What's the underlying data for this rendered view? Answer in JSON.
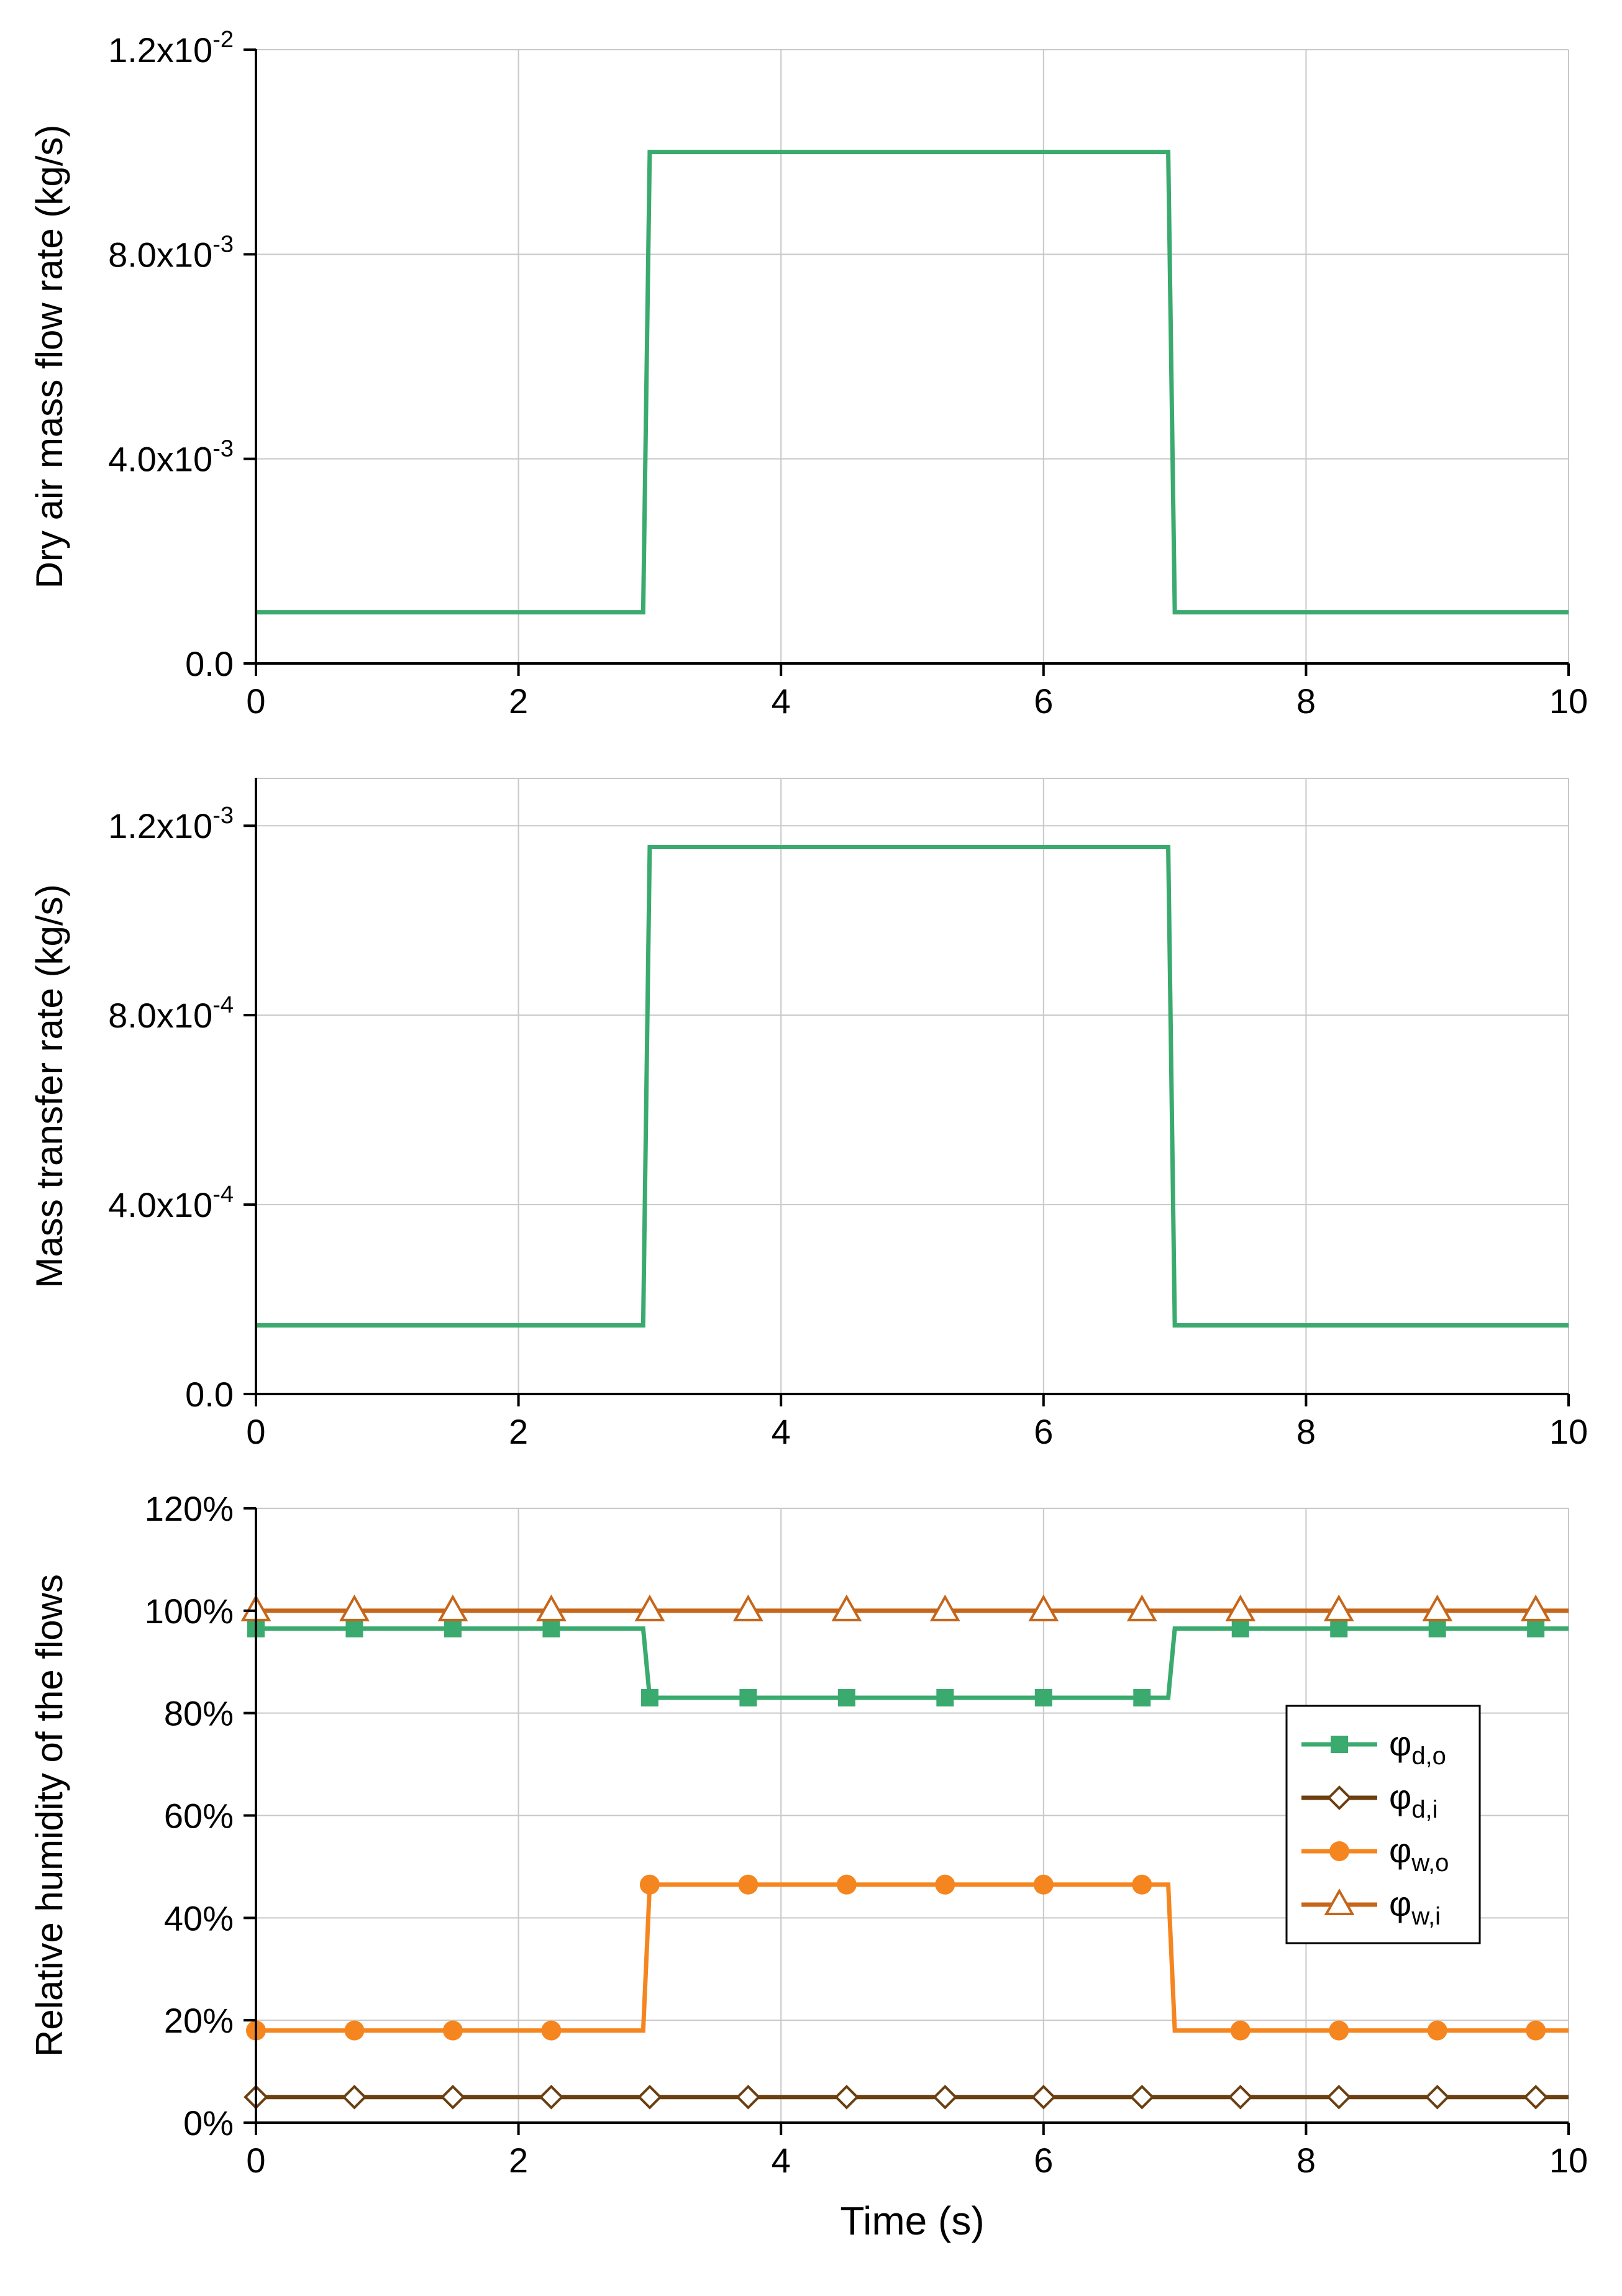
{
  "colors": {
    "phi_d_o": "#3aaa6e",
    "phi_d_i": "#6b3f10",
    "phi_w_o": "#f5851f",
    "phi_w_i": "#c5661a",
    "grid": "#c8c8c8",
    "axis": "#000000"
  },
  "chart_data": [
    {
      "type": "line",
      "id": "p1",
      "title": "",
      "xlabel": "",
      "ylabel": "Dry air mass flow rate (kg/s)",
      "xlim": [
        0,
        10
      ],
      "ylim": [
        0,
        0.012
      ],
      "xticks": [
        0,
        2,
        4,
        6,
        8,
        10
      ],
      "xtick_labels": [
        "0",
        "2",
        "4",
        "6",
        "8",
        "10"
      ],
      "yticks": [
        0,
        0.004,
        0.008,
        0.012
      ],
      "ytick_labels": [
        {
          "base": "0.0",
          "exp": ""
        },
        {
          "base": "4.0x10",
          "exp": "-3"
        },
        {
          "base": "8.0x10",
          "exp": "-3"
        },
        {
          "base": "1.2x10",
          "exp": "-2"
        }
      ],
      "grid": true,
      "series": [
        {
          "name": "dry air mass flow rate",
          "color": "#3aaa6e",
          "marker": "none",
          "x": [
            0,
            2.95,
            3.0,
            6.95,
            7.0,
            10
          ],
          "y": [
            0.001,
            0.001,
            0.01,
            0.01,
            0.001,
            0.001
          ]
        }
      ]
    },
    {
      "type": "line",
      "id": "p2",
      "title": "",
      "xlabel": "",
      "ylabel": "Mass transfer rate (kg/s)",
      "xlim": [
        0,
        10
      ],
      "ylim": [
        0,
        0.0013
      ],
      "xticks": [
        0,
        2,
        4,
        6,
        8,
        10
      ],
      "xtick_labels": [
        "0",
        "2",
        "4",
        "6",
        "8",
        "10"
      ],
      "yticks": [
        0,
        0.0004,
        0.0008,
        0.0012
      ],
      "ytick_labels": [
        {
          "base": "0.0",
          "exp": ""
        },
        {
          "base": "4.0x10",
          "exp": "-4"
        },
        {
          "base": "8.0x10",
          "exp": "-4"
        },
        {
          "base": "1.2x10",
          "exp": "-3"
        }
      ],
      "grid": true,
      "series": [
        {
          "name": "mass transfer rate",
          "color": "#3aaa6e",
          "marker": "none",
          "x": [
            0,
            2.95,
            3.0,
            6.95,
            7.0,
            10
          ],
          "y": [
            0.000145,
            0.000145,
            0.001155,
            0.001155,
            0.000145,
            0.000145
          ]
        }
      ]
    },
    {
      "type": "line",
      "id": "p3",
      "title": "",
      "xlabel": "Time (s)",
      "ylabel": "Relative humidity of the flows",
      "xlim": [
        0,
        10
      ],
      "ylim": [
        0,
        1.2
      ],
      "xticks": [
        0,
        2,
        4,
        6,
        8,
        10
      ],
      "xtick_labels": [
        "0",
        "2",
        "4",
        "6",
        "8",
        "10"
      ],
      "yticks": [
        0,
        0.2,
        0.4,
        0.6,
        0.8,
        1.0,
        1.2
      ],
      "ytick_labels": [
        {
          "base": "0%",
          "exp": ""
        },
        {
          "base": "20%",
          "exp": ""
        },
        {
          "base": "40%",
          "exp": ""
        },
        {
          "base": "60%",
          "exp": ""
        },
        {
          "base": "80%",
          "exp": ""
        },
        {
          "base": "100%",
          "exp": ""
        },
        {
          "base": "120%",
          "exp": ""
        }
      ],
      "grid": true,
      "legend_position": "right",
      "marker_x": [
        0,
        0.75,
        1.5,
        2.25,
        3.0,
        3.75,
        4.5,
        5.25,
        6.0,
        6.75,
        7.5,
        8.25,
        9.0,
        9.75
      ],
      "series": [
        {
          "key": "phi_d_o",
          "label_main": "φ",
          "label_sub": "d,o",
          "color": "#3aaa6e",
          "marker": "square",
          "fill": "#3aaa6e",
          "x": [
            0,
            2.95,
            3.0,
            6.95,
            7.0,
            10
          ],
          "y": [
            0.965,
            0.965,
            0.83,
            0.83,
            0.965,
            0.965
          ]
        },
        {
          "key": "phi_d_i",
          "label_main": "φ",
          "label_sub": "d,i",
          "color": "#6b3f10",
          "marker": "diamond",
          "fill": "#ffffff",
          "x": [
            0,
            10
          ],
          "y": [
            0.05,
            0.05
          ]
        },
        {
          "key": "phi_w_o",
          "label_main": "φ",
          "label_sub": "w,o",
          "color": "#f5851f",
          "marker": "circle",
          "fill": "#f5851f",
          "x": [
            0,
            2.95,
            3.0,
            6.95,
            7.0,
            10
          ],
          "y": [
            0.18,
            0.18,
            0.465,
            0.465,
            0.18,
            0.18
          ]
        },
        {
          "key": "phi_w_i",
          "label_main": "φ",
          "label_sub": "w,i",
          "color": "#c5661a",
          "marker": "triangle",
          "fill": "#ffffff",
          "x": [
            0,
            10
          ],
          "y": [
            1.0,
            1.0
          ]
        }
      ]
    }
  ]
}
